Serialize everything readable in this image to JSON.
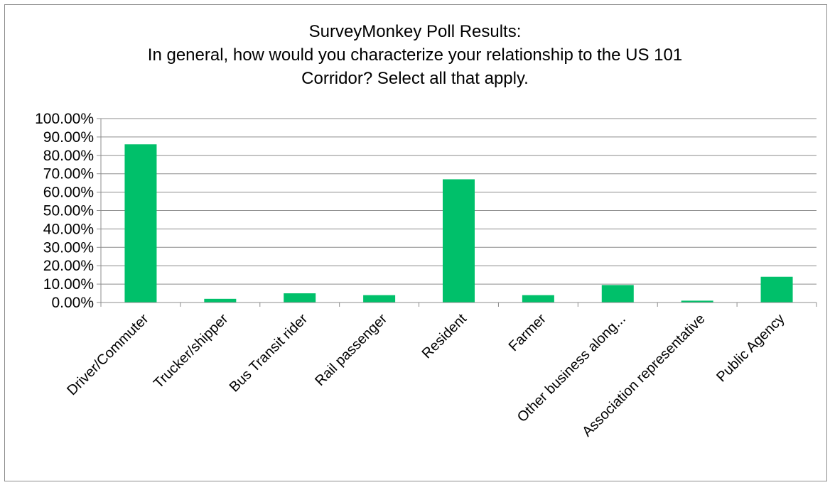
{
  "chart_data": {
    "type": "bar",
    "title_lines": [
      "SurveyMonkey Poll Results:",
      "In general, how would you characterize your relationship to the US 101",
      "Corridor? Select all that apply."
    ],
    "categories": [
      "Driver/Commuter",
      "Trucker/shipper",
      "Bus Transit rider",
      "Rail passenger",
      "Resident",
      "Farmer",
      "Other business along...",
      "Association representative",
      "Public Agency"
    ],
    "values": [
      0.86,
      0.02,
      0.05,
      0.04,
      0.67,
      0.04,
      0.095,
      0.01,
      0.14
    ],
    "ylim": [
      0,
      1.0
    ],
    "y_ticks": [
      0,
      0.1,
      0.2,
      0.3,
      0.4,
      0.5,
      0.6,
      0.7,
      0.8,
      0.9,
      1.0
    ],
    "y_tick_labels": [
      "0.00%",
      "10.00%",
      "20.00%",
      "30.00%",
      "40.00%",
      "50.00%",
      "60.00%",
      "70.00%",
      "80.00%",
      "90.00%",
      "100.00%"
    ],
    "grid": true,
    "legend": "none",
    "bar_color": "#00c06a",
    "xlabel": "",
    "ylabel": ""
  }
}
